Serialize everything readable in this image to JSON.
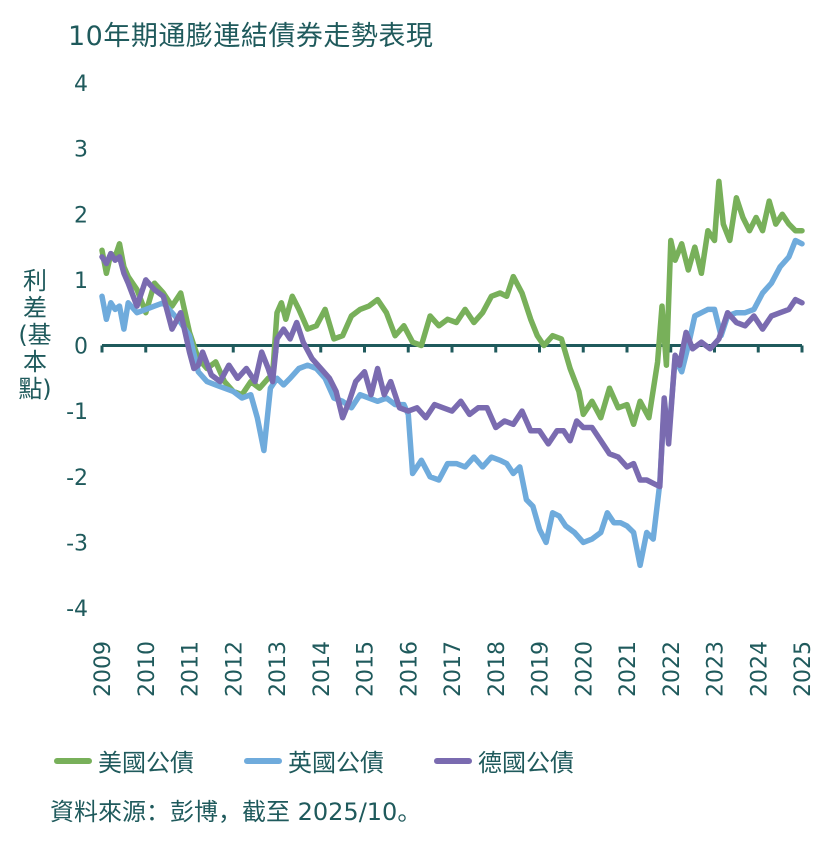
{
  "title": "10年期通膨連結債券走勢表現",
  "source_note": "資料來源：彭博，截至 2025/10。",
  "chart_data": {
    "type": "line",
    "title": "10年期通膨連結債券走勢表現",
    "xlabel": "",
    "ylabel": "利差(基本點)",
    "ylabel_chars": [
      "利",
      "差",
      "(基",
      "本",
      "點)"
    ],
    "xlim": [
      2009,
      2025
    ],
    "ylim": [
      -4,
      4
    ],
    "yticks": [
      4,
      3,
      2,
      1,
      0,
      -1,
      -2,
      -3,
      -4
    ],
    "xticks": [
      "2009",
      "2010",
      "2011",
      "2012",
      "2013",
      "2014",
      "2015",
      "2016",
      "2017",
      "2018",
      "2019",
      "2020",
      "2021",
      "2022",
      "2023",
      "2024",
      "2025"
    ],
    "grid": false,
    "legend_position": "bottom",
    "series": [
      {
        "name": "美國公債",
        "color": "#78b05a",
        "x": [
          2009.0,
          2009.1,
          2009.2,
          2009.3,
          2009.4,
          2009.5,
          2009.6,
          2009.8,
          2010.0,
          2010.2,
          2010.4,
          2010.6,
          2010.8,
          2011.0,
          2011.2,
          2011.4,
          2011.6,
          2011.8,
          2012.0,
          2012.2,
          2012.4,
          2012.6,
          2012.8,
          2012.9,
          2013.0,
          2013.1,
          2013.2,
          2013.35,
          2013.5,
          2013.7,
          2013.9,
          2014.1,
          2014.3,
          2014.5,
          2014.7,
          2014.9,
          2015.1,
          2015.3,
          2015.5,
          2015.7,
          2015.9,
          2016.1,
          2016.3,
          2016.5,
          2016.7,
          2016.9,
          2017.1,
          2017.3,
          2017.5,
          2017.7,
          2017.9,
          2018.1,
          2018.25,
          2018.4,
          2018.6,
          2018.8,
          2018.95,
          2019.1,
          2019.3,
          2019.5,
          2019.7,
          2019.9,
          2020.0,
          2020.2,
          2020.4,
          2020.6,
          2020.8,
          2021.0,
          2021.15,
          2021.3,
          2021.5,
          2021.7,
          2021.8,
          2021.9,
          2022.0,
          2022.1,
          2022.25,
          2022.4,
          2022.55,
          2022.7,
          2022.85,
          2023.0,
          2023.1,
          2023.2,
          2023.35,
          2023.5,
          2023.65,
          2023.8,
          2023.95,
          2024.1,
          2024.25,
          2024.4,
          2024.55,
          2024.7,
          2024.85,
          2025.0
        ],
        "values": [
          1.45,
          1.1,
          1.4,
          1.35,
          1.55,
          1.2,
          1.05,
          0.85,
          0.5,
          0.95,
          0.8,
          0.6,
          0.8,
          0.2,
          -0.2,
          -0.35,
          -0.25,
          -0.55,
          -0.7,
          -0.75,
          -0.55,
          -0.65,
          -0.5,
          -0.45,
          0.5,
          0.65,
          0.4,
          0.75,
          0.55,
          0.25,
          0.3,
          0.55,
          0.1,
          0.15,
          0.45,
          0.55,
          0.6,
          0.7,
          0.5,
          0.15,
          0.3,
          0.05,
          0.0,
          0.45,
          0.3,
          0.4,
          0.35,
          0.55,
          0.35,
          0.5,
          0.75,
          0.8,
          0.75,
          1.05,
          0.8,
          0.4,
          0.15,
          0.0,
          0.15,
          0.1,
          -0.35,
          -0.7,
          -1.05,
          -0.85,
          -1.1,
          -0.65,
          -0.95,
          -0.9,
          -1.2,
          -0.85,
          -1.1,
          -0.25,
          0.6,
          -0.3,
          1.6,
          1.3,
          1.55,
          1.15,
          1.5,
          1.1,
          1.75,
          1.6,
          2.5,
          1.85,
          1.6,
          2.25,
          1.95,
          1.75,
          1.95,
          1.75,
          2.2,
          1.85,
          2.0,
          1.85,
          1.75,
          1.75
        ]
      },
      {
        "name": "英國公債",
        "color": "#6fabdc",
        "x": [
          2009.0,
          2009.1,
          2009.2,
          2009.3,
          2009.4,
          2009.5,
          2009.6,
          2009.8,
          2010.0,
          2010.2,
          2010.4,
          2010.6,
          2010.8,
          2011.0,
          2011.2,
          2011.4,
          2011.6,
          2011.8,
          2012.0,
          2012.2,
          2012.4,
          2012.55,
          2012.7,
          2012.85,
          2013.0,
          2013.15,
          2013.3,
          2013.5,
          2013.7,
          2013.9,
          2014.1,
          2014.3,
          2014.5,
          2014.7,
          2014.9,
          2015.1,
          2015.3,
          2015.5,
          2015.7,
          2015.9,
          2016.0,
          2016.1,
          2016.3,
          2016.5,
          2016.7,
          2016.9,
          2017.1,
          2017.3,
          2017.5,
          2017.7,
          2017.9,
          2018.1,
          2018.25,
          2018.4,
          2018.55,
          2018.7,
          2018.85,
          2019.0,
          2019.15,
          2019.3,
          2019.45,
          2019.6,
          2019.8,
          2020.0,
          2020.2,
          2020.4,
          2020.55,
          2020.7,
          2020.85,
          2021.0,
          2021.15,
          2021.3,
          2021.45,
          2021.6,
          2021.75,
          2021.85,
          2021.95,
          2022.1,
          2022.25,
          2022.4,
          2022.55,
          2022.7,
          2022.85,
          2023.0,
          2023.15,
          2023.3,
          2023.5,
          2023.7,
          2023.9,
          2024.1,
          2024.3,
          2024.5,
          2024.7,
          2024.85,
          2025.0
        ],
        "values": [
          0.75,
          0.4,
          0.65,
          0.55,
          0.6,
          0.25,
          0.65,
          0.5,
          0.55,
          0.6,
          0.65,
          0.5,
          0.35,
          0.15,
          -0.4,
          -0.55,
          -0.6,
          -0.65,
          -0.7,
          -0.8,
          -0.75,
          -1.1,
          -1.6,
          -0.65,
          -0.5,
          -0.6,
          -0.5,
          -0.35,
          -0.3,
          -0.35,
          -0.5,
          -0.8,
          -0.85,
          -0.95,
          -0.75,
          -0.8,
          -0.85,
          -0.8,
          -0.9,
          -0.9,
          -1.05,
          -1.95,
          -1.75,
          -2.0,
          -2.05,
          -1.8,
          -1.8,
          -1.85,
          -1.7,
          -1.85,
          -1.7,
          -1.75,
          -1.8,
          -1.95,
          -1.85,
          -2.35,
          -2.45,
          -2.8,
          -3.0,
          -2.55,
          -2.6,
          -2.75,
          -2.85,
          -3.0,
          -2.95,
          -2.85,
          -2.55,
          -2.7,
          -2.7,
          -2.75,
          -2.85,
          -3.35,
          -2.85,
          -2.95,
          -2.1,
          -0.9,
          -1.4,
          -0.2,
          -0.4,
          0.0,
          0.45,
          0.5,
          0.55,
          0.55,
          0.15,
          0.45,
          0.5,
          0.5,
          0.55,
          0.8,
          0.95,
          1.2,
          1.35,
          1.6,
          1.55
        ]
      },
      {
        "name": "德國公債",
        "color": "#7a6bb0",
        "x": [
          2009.0,
          2009.1,
          2009.2,
          2009.3,
          2009.4,
          2009.5,
          2009.6,
          2009.8,
          2010.0,
          2010.2,
          2010.4,
          2010.6,
          2010.8,
          2011.0,
          2011.1,
          2011.2,
          2011.3,
          2011.5,
          2011.7,
          2011.9,
          2012.1,
          2012.3,
          2012.5,
          2012.65,
          2012.8,
          2012.9,
          2013.0,
          2013.15,
          2013.3,
          2013.45,
          2013.6,
          2013.8,
          2014.0,
          2014.2,
          2014.35,
          2014.5,
          2014.65,
          2014.8,
          2015.0,
          2015.15,
          2015.3,
          2015.45,
          2015.6,
          2015.8,
          2016.0,
          2016.2,
          2016.4,
          2016.6,
          2016.8,
          2017.0,
          2017.2,
          2017.4,
          2017.6,
          2017.8,
          2018.0,
          2018.2,
          2018.4,
          2018.6,
          2018.8,
          2019.0,
          2019.2,
          2019.4,
          2019.55,
          2019.7,
          2019.85,
          2020.0,
          2020.2,
          2020.4,
          2020.6,
          2020.8,
          2021.0,
          2021.15,
          2021.3,
          2021.45,
          2021.6,
          2021.75,
          2021.85,
          2021.95,
          2022.1,
          2022.2,
          2022.35,
          2022.5,
          2022.7,
          2022.9,
          2023.1,
          2023.3,
          2023.5,
          2023.7,
          2023.9,
          2024.1,
          2024.3,
          2024.5,
          2024.7,
          2024.85,
          2025.0
        ],
        "values": [
          1.35,
          1.25,
          1.4,
          1.3,
          1.35,
          1.1,
          0.95,
          0.6,
          1.0,
          0.85,
          0.75,
          0.25,
          0.5,
          -0.1,
          -0.35,
          -0.3,
          -0.1,
          -0.45,
          -0.55,
          -0.3,
          -0.5,
          -0.35,
          -0.55,
          -0.1,
          -0.35,
          -0.55,
          0.1,
          0.25,
          0.1,
          0.35,
          0.05,
          -0.2,
          -0.35,
          -0.5,
          -0.7,
          -1.1,
          -0.85,
          -0.55,
          -0.4,
          -0.75,
          -0.35,
          -0.75,
          -0.55,
          -0.95,
          -1.0,
          -0.95,
          -1.1,
          -0.9,
          -0.95,
          -1.0,
          -0.85,
          -1.05,
          -0.95,
          -0.95,
          -1.25,
          -1.15,
          -1.2,
          -1.0,
          -1.3,
          -1.3,
          -1.5,
          -1.3,
          -1.3,
          -1.45,
          -1.15,
          -1.25,
          -1.25,
          -1.45,
          -1.65,
          -1.7,
          -1.85,
          -1.8,
          -2.05,
          -2.05,
          -2.1,
          -2.15,
          -0.8,
          -1.5,
          -0.15,
          -0.3,
          0.2,
          -0.05,
          0.05,
          -0.05,
          0.1,
          0.5,
          0.35,
          0.3,
          0.45,
          0.25,
          0.45,
          0.5,
          0.55,
          0.7,
          0.65
        ]
      }
    ]
  }
}
